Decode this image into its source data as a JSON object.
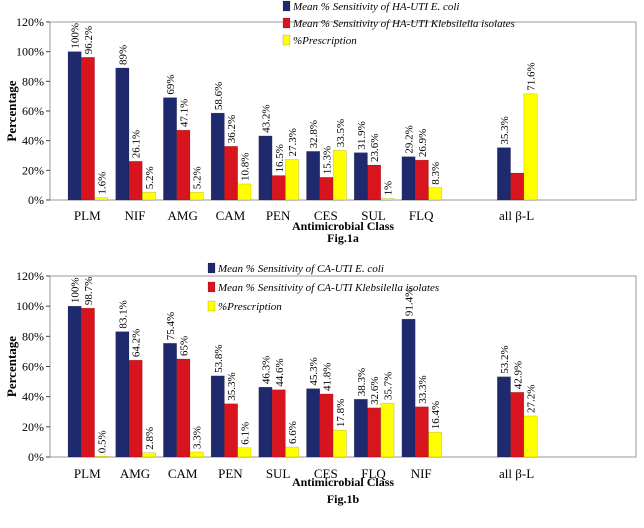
{
  "chart_data": [
    {
      "type": "bar",
      "caption": "Fig.1a",
      "xlabel": "Antimicrobial Class",
      "ylabel": "Percentage",
      "ylim": [
        0,
        120
      ],
      "yticks": [
        "0%",
        "20%",
        "40%",
        "60%",
        "80%",
        "100%",
        "120%"
      ],
      "legend_position": "top-right",
      "categories": [
        "PLM",
        "NIF",
        "AMG",
        "CAM",
        "PEN",
        "CES",
        "SUL",
        "FLQ",
        "",
        "all β-L"
      ],
      "series": [
        {
          "name": "Mean % Sensitivity of HA-UTI E. coli",
          "color": "#1f2a6e",
          "values": [
            100,
            89,
            69,
            58.6,
            43.2,
            32.8,
            31.9,
            29.2,
            null,
            35.3
          ],
          "labels": [
            "100%",
            "89%",
            "69%",
            "58.6%",
            "43.2%",
            "32.8%",
            "31.9%",
            "29.2%",
            "",
            "35.3%"
          ]
        },
        {
          "name": "Mean % Sensitivity of HA-UTI Klebsilella isolates",
          "color": "#d8141e",
          "values": [
            96.2,
            26.1,
            47.1,
            36.2,
            16.5,
            15.3,
            23.6,
            26.9,
            null,
            18.2
          ],
          "labels": [
            "96.2%",
            "26.1%",
            "47.1%",
            "36.2%",
            "16.5%",
            "15.3%",
            "23.6%",
            "26.9%",
            "",
            ""
          ]
        },
        {
          "name": "%Prescription",
          "color": "#ffff00",
          "values": [
            1.6,
            5.2,
            5.2,
            10.8,
            27.3,
            33.5,
            1,
            8.3,
            null,
            71.6
          ],
          "labels": [
            "1.6%",
            "5.2%",
            "5.2%",
            "10.8%",
            "27.3%",
            "33.5%",
            "1%",
            "8.3%",
            "",
            "71.6%"
          ]
        }
      ]
    },
    {
      "type": "bar",
      "caption": "Fig.1b",
      "xlabel": "Antimicrobial Class",
      "ylabel": "Percentage",
      "ylim": [
        0,
        120
      ],
      "yticks": [
        "0%",
        "20%",
        "40%",
        "60%",
        "80%",
        "100%",
        "120%"
      ],
      "legend_position": "top-left",
      "categories": [
        "PLM",
        "AMG",
        "CAM",
        "PEN",
        "SUL",
        "CES",
        "FLQ",
        "NIF",
        "",
        "all β-L"
      ],
      "series": [
        {
          "name": "Mean % Sensitivity of CA-UTI E. coli",
          "color": "#1f2a6e",
          "values": [
            100,
            83.1,
            75.4,
            53.8,
            46.3,
            45.3,
            38.3,
            91.4,
            null,
            53.2
          ],
          "labels": [
            "100%",
            "83.1%",
            "75.4%",
            "53.8%",
            "46.3%",
            "45.3%",
            "38.3%",
            "91.4%",
            "",
            "53.2%"
          ]
        },
        {
          "name": "Mean % Sensitivity of CA-UTI Klebsilella isolates",
          "color": "#d8141e",
          "values": [
            98.7,
            64.2,
            65,
            35.3,
            44.6,
            41.8,
            32.6,
            33.3,
            null,
            42.9
          ],
          "labels": [
            "98.7%",
            "64.2%",
            "65%",
            "35.3%",
            "44.6%",
            "41.8%",
            "32.6%",
            "33.3%",
            "",
            "42.9%"
          ]
        },
        {
          "name": "%Prescription",
          "color": "#ffff00",
          "values": [
            0.5,
            2.8,
            3.3,
            6.1,
            6.6,
            17.8,
            35.7,
            16.4,
            null,
            27.2
          ],
          "labels": [
            "0.5%",
            "2.8%",
            "3.3%",
            "6.1%",
            "6.6%",
            "17.8%",
            "35.7%",
            "16.4%",
            "",
            "27.2%"
          ]
        }
      ]
    }
  ]
}
